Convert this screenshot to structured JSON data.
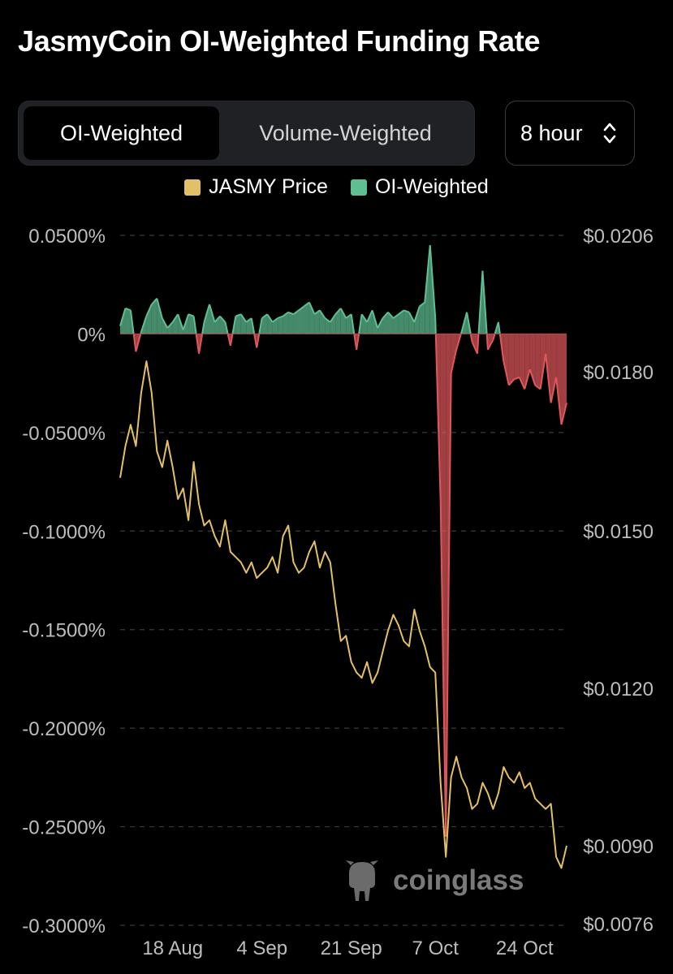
{
  "title": "JasmyCoin OI-Weighted Funding Rate",
  "tabs": [
    {
      "label": "OI-Weighted",
      "active": true
    },
    {
      "label": "Volume-Weighted",
      "active": false
    }
  ],
  "interval_select": {
    "value": "8 hour"
  },
  "legend": [
    {
      "label": "JASMY Price",
      "color": "#e3c068"
    },
    {
      "label": "OI-Weighted",
      "color": "#5fbf93"
    }
  ],
  "watermark": "coinglass",
  "colors": {
    "positive": "#5fbf93",
    "negative": "#e0575b",
    "price": "#e3c068",
    "background": "#000000"
  },
  "chart_data": {
    "type": "line",
    "title": "JasmyCoin OI-Weighted Funding Rate",
    "x_tick_labels": [
      "18 Aug",
      "4 Sep",
      "21 Sep",
      "7 Oct",
      "24 Oct"
    ],
    "x_range": [
      "2023-08-08",
      "2023-11-01"
    ],
    "y_left": {
      "ticks": [
        0.05,
        0,
        -0.05,
        -0.1,
        -0.15,
        -0.2,
        -0.25,
        -0.3
      ],
      "tick_labels": [
        "0.0500%",
        "0%",
        "-0.0500%",
        "-0.1000%",
        "-0.1500%",
        "-0.2000%",
        "-0.2500%",
        "-0.3000%"
      ],
      "range": [
        -0.3,
        0.05
      ]
    },
    "y_right": {
      "ticks": [
        0.0206,
        0.018,
        0.015,
        0.012,
        0.009,
        0.0076
      ],
      "tick_labels": [
        "$0.0206",
        "$0.0180",
        "$0.0150",
        "$0.0120",
        "$0.0090",
        "$0.0076"
      ]
    },
    "grid": true,
    "legend_position": "top-center",
    "series": [
      {
        "name": "OI-Weighted",
        "type": "area",
        "axis": "left",
        "x": [
          "2023-08-08",
          "2023-08-09",
          "2023-08-10",
          "2023-08-11",
          "2023-08-12",
          "2023-08-13",
          "2023-08-14",
          "2023-08-15",
          "2023-08-16",
          "2023-08-17",
          "2023-08-18",
          "2023-08-19",
          "2023-08-20",
          "2023-08-21",
          "2023-08-22",
          "2023-08-23",
          "2023-08-24",
          "2023-08-25",
          "2023-08-26",
          "2023-08-27",
          "2023-08-28",
          "2023-08-29",
          "2023-08-30",
          "2023-08-31",
          "2023-09-01",
          "2023-09-02",
          "2023-09-03",
          "2023-09-04",
          "2023-09-05",
          "2023-09-06",
          "2023-09-07",
          "2023-09-08",
          "2023-09-09",
          "2023-09-10",
          "2023-09-11",
          "2023-09-12",
          "2023-09-13",
          "2023-09-14",
          "2023-09-15",
          "2023-09-16",
          "2023-09-17",
          "2023-09-18",
          "2023-09-19",
          "2023-09-20",
          "2023-09-21",
          "2023-09-22",
          "2023-09-23",
          "2023-09-24",
          "2023-09-25",
          "2023-09-26",
          "2023-09-27",
          "2023-09-28",
          "2023-09-29",
          "2023-09-30",
          "2023-10-01",
          "2023-10-02",
          "2023-10-03",
          "2023-10-04",
          "2023-10-05",
          "2023-10-06",
          "2023-10-07",
          "2023-10-08",
          "2023-10-09",
          "2023-10-10",
          "2023-10-11",
          "2023-10-12",
          "2023-10-13",
          "2023-10-14",
          "2023-10-15",
          "2023-10-16",
          "2023-10-17",
          "2023-10-18",
          "2023-10-19",
          "2023-10-20",
          "2023-10-21",
          "2023-10-22",
          "2023-10-23",
          "2023-10-24",
          "2023-10-25",
          "2023-10-26",
          "2023-10-27",
          "2023-10-28",
          "2023-10-29",
          "2023-10-30",
          "2023-10-31",
          "2023-11-01"
        ],
        "values": [
          0.004,
          0.013,
          0.012,
          -0.009,
          0.001,
          0.009,
          0.015,
          0.018,
          0.008,
          0.003,
          0.006,
          0.01,
          0.002,
          0.01,
          0.009,
          -0.01,
          0.006,
          0.015,
          0.006,
          0.009,
          0.006,
          -0.006,
          0.009,
          0.01,
          0.006,
          0.008,
          -0.007,
          0.008,
          0.01,
          0.006,
          0.008,
          0.009,
          0.011,
          0.01,
          0.012,
          0.014,
          0.016,
          0.01,
          0.012,
          0.008,
          0.006,
          0.01,
          0.013,
          0.008,
          0.01,
          -0.008,
          0.01,
          0.006,
          0.012,
          0.003,
          0.008,
          0.011,
          0.008,
          0.01,
          0.012,
          0.011,
          0.006,
          0.014,
          0.016,
          0.045,
          0.008,
          -0.085,
          -0.255,
          -0.02,
          -0.008,
          0.001,
          0.011,
          -0.004,
          -0.01,
          0.032,
          -0.008,
          -0.003,
          0.006,
          -0.014,
          -0.026,
          -0.023,
          -0.022,
          -0.028,
          -0.018,
          -0.026,
          -0.028,
          -0.01,
          -0.035,
          -0.022,
          -0.046,
          -0.035
        ]
      },
      {
        "name": "JASMY Price",
        "type": "line",
        "axis": "right",
        "x": [
          "2023-08-08",
          "2023-08-09",
          "2023-08-10",
          "2023-08-11",
          "2023-08-12",
          "2023-08-13",
          "2023-08-14",
          "2023-08-15",
          "2023-08-16",
          "2023-08-17",
          "2023-08-18",
          "2023-08-19",
          "2023-08-20",
          "2023-08-21",
          "2023-08-22",
          "2023-08-23",
          "2023-08-24",
          "2023-08-25",
          "2023-08-26",
          "2023-08-27",
          "2023-08-28",
          "2023-08-29",
          "2023-08-30",
          "2023-08-31",
          "2023-09-01",
          "2023-09-02",
          "2023-09-03",
          "2023-09-04",
          "2023-09-05",
          "2023-09-06",
          "2023-09-07",
          "2023-09-08",
          "2023-09-09",
          "2023-09-10",
          "2023-09-11",
          "2023-09-12",
          "2023-09-13",
          "2023-09-14",
          "2023-09-15",
          "2023-09-16",
          "2023-09-17",
          "2023-09-18",
          "2023-09-19",
          "2023-09-20",
          "2023-09-21",
          "2023-09-22",
          "2023-09-23",
          "2023-09-24",
          "2023-09-25",
          "2023-09-26",
          "2023-09-27",
          "2023-09-28",
          "2023-09-29",
          "2023-09-30",
          "2023-10-01",
          "2023-10-02",
          "2023-10-03",
          "2023-10-04",
          "2023-10-05",
          "2023-10-06",
          "2023-10-07",
          "2023-10-08",
          "2023-10-09",
          "2023-10-10",
          "2023-10-11",
          "2023-10-12",
          "2023-10-13",
          "2023-10-14",
          "2023-10-15",
          "2023-10-16",
          "2023-10-17",
          "2023-10-18",
          "2023-10-19",
          "2023-10-20",
          "2023-10-21",
          "2023-10-22",
          "2023-10-23",
          "2023-10-24",
          "2023-10-25",
          "2023-10-26",
          "2023-10-27",
          "2023-10-28",
          "2023-10-29",
          "2023-10-30",
          "2023-10-31",
          "2023-11-01"
        ],
        "values": [
          0.016,
          0.0166,
          0.017,
          0.0166,
          0.0176,
          0.0182,
          0.0176,
          0.0165,
          0.0162,
          0.0167,
          0.0162,
          0.0156,
          0.0158,
          0.0152,
          0.0163,
          0.0155,
          0.0151,
          0.0152,
          0.0149,
          0.0147,
          0.0152,
          0.0146,
          0.0145,
          0.0144,
          0.0142,
          0.0144,
          0.0141,
          0.0142,
          0.0143,
          0.0145,
          0.0142,
          0.0149,
          0.0151,
          0.0144,
          0.0142,
          0.0143,
          0.0146,
          0.0148,
          0.0143,
          0.0146,
          0.0144,
          0.0136,
          0.0129,
          0.013,
          0.0125,
          0.0123,
          0.0122,
          0.0125,
          0.0121,
          0.0123,
          0.0127,
          0.0131,
          0.0134,
          0.0132,
          0.0129,
          0.0128,
          0.0135,
          0.0131,
          0.0128,
          0.0124,
          0.0123,
          0.0102,
          0.0088,
          0.0103,
          0.0107,
          0.0103,
          0.0101,
          0.0097,
          0.0098,
          0.0102,
          0.01,
          0.0097,
          0.01,
          0.0105,
          0.0103,
          0.0102,
          0.0104,
          0.0101,
          0.0102,
          0.0099,
          0.0098,
          0.0097,
          0.0098,
          0.0088,
          0.0086,
          0.009
        ]
      }
    ]
  }
}
